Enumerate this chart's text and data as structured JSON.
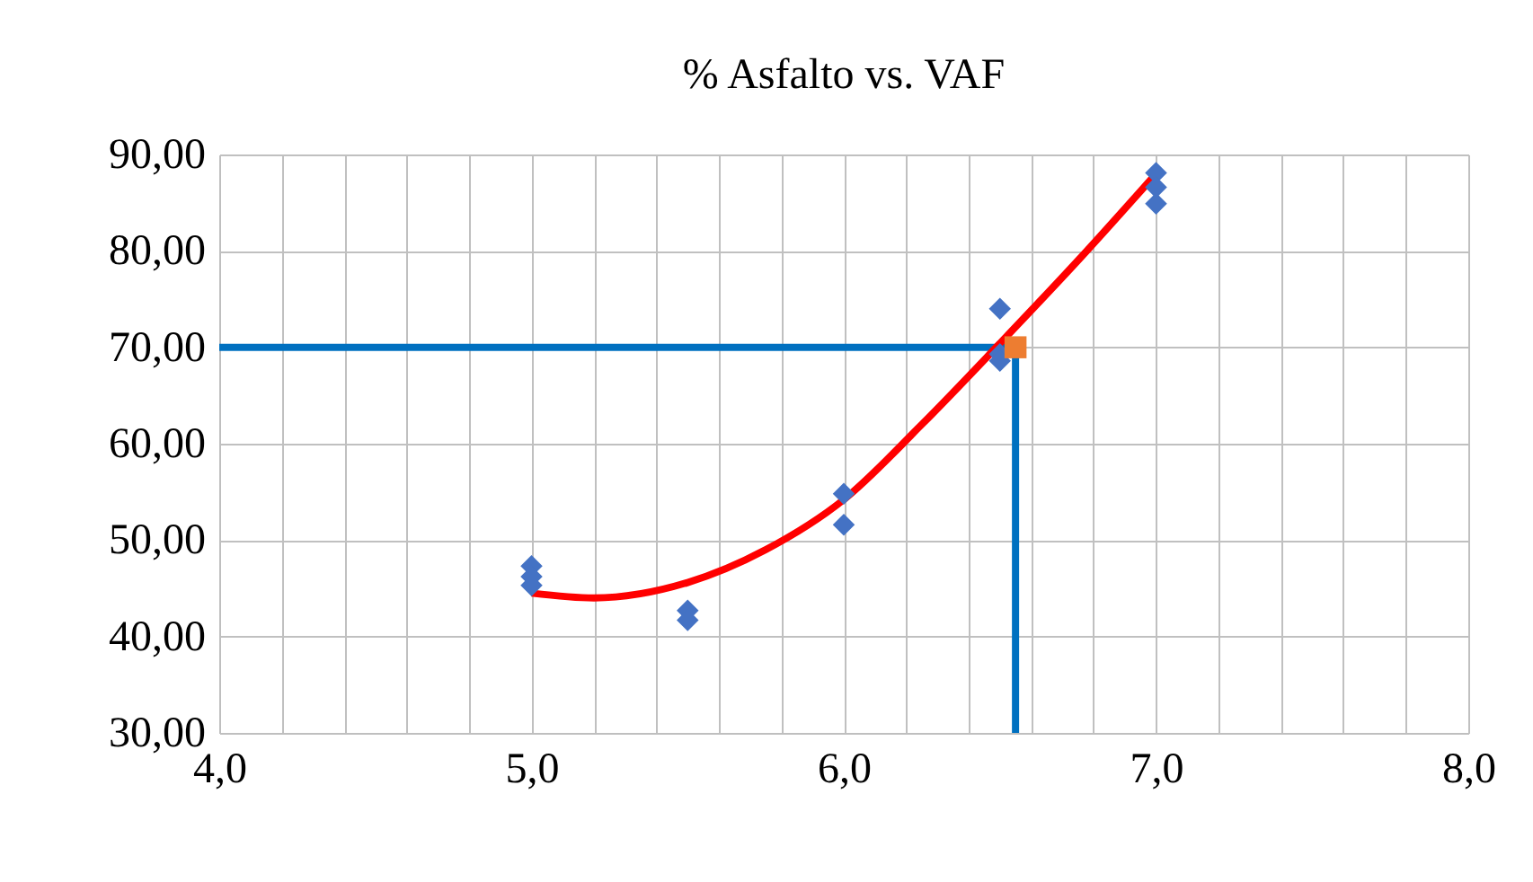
{
  "chart_data": {
    "type": "scatter",
    "title": "% Asfalto vs. VAF",
    "xlim": [
      4,
      8
    ],
    "ylim": [
      30,
      90
    ],
    "xticks": [
      {
        "value": 4,
        "label": "4,0"
      },
      {
        "value": 4.2,
        "label": null
      },
      {
        "value": 4.4,
        "label": null
      },
      {
        "value": 4.6,
        "label": null
      },
      {
        "value": 4.8,
        "label": null
      },
      {
        "value": 5,
        "label": "5,0"
      },
      {
        "value": 5.2,
        "label": null
      },
      {
        "value": 5.4,
        "label": null
      },
      {
        "value": 5.6,
        "label": null
      },
      {
        "value": 5.8,
        "label": null
      },
      {
        "value": 6,
        "label": "6,0"
      },
      {
        "value": 6.2,
        "label": null
      },
      {
        "value": 6.4,
        "label": null
      },
      {
        "value": 6.6,
        "label": null
      },
      {
        "value": 6.8,
        "label": null
      },
      {
        "value": 7,
        "label": "7,0"
      },
      {
        "value": 7.2,
        "label": null
      },
      {
        "value": 7.4,
        "label": null
      },
      {
        "value": 7.6,
        "label": null
      },
      {
        "value": 7.8,
        "label": null
      },
      {
        "value": 8,
        "label": "8,0"
      }
    ],
    "yticks": [
      {
        "value": 30,
        "label": "30,00"
      },
      {
        "value": 40,
        "label": "40,00"
      },
      {
        "value": 50,
        "label": "50,00"
      },
      {
        "value": 60,
        "label": "60,00"
      },
      {
        "value": 70,
        "label": "70,00"
      },
      {
        "value": 80,
        "label": "80,00"
      },
      {
        "value": 90,
        "label": "90,00"
      }
    ],
    "grid": true,
    "series": [
      {
        "type": "line",
        "color": "#0070c0",
        "x": [
          4,
          6.55
        ],
        "values": [
          70,
          70
        ],
        "marker": "none"
      },
      {
        "type": "line",
        "color": "#0070c0",
        "x": [
          6.55,
          6.55
        ],
        "values": [
          70,
          30
        ],
        "marker": "none"
      },
      {
        "type": "line",
        "color": "#ff0000",
        "marker": "none",
        "x": [
          5,
          5.2,
          5.5,
          5.75,
          6,
          6.25,
          6.5,
          6.75,
          7
        ],
        "values": [
          44.5,
          44.0,
          45.6,
          49,
          54.2,
          62,
          70.4,
          79,
          88
        ]
      },
      {
        "color": "#4472c4",
        "marker": "diamond",
        "x": [
          5,
          5,
          5,
          5.5,
          5.5,
          6,
          6,
          6.5,
          6.5,
          6.5,
          7,
          7,
          7
        ],
        "values": [
          47.3,
          46.2,
          45.3,
          42.7,
          41.7,
          54.8,
          51.6,
          74.0,
          69.3,
          68.6,
          88.1,
          86.6,
          84.9
        ]
      },
      {
        "color": "#ed7d31",
        "marker": "square",
        "x": [
          6.55
        ],
        "values": [
          70
        ]
      }
    ]
  }
}
